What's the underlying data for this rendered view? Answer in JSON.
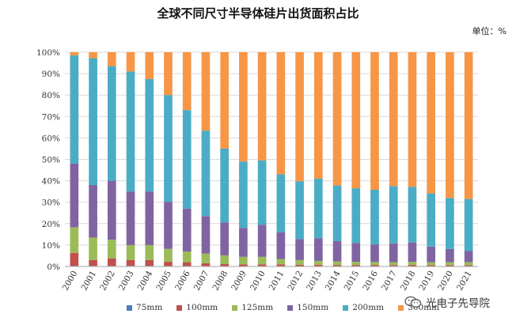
{
  "header": {
    "title": "全球不同尺寸半导体硅片出货面积占比",
    "unit": "单位：%"
  },
  "watermark": {
    "text": "光电子先导院",
    "icon": "wechat-icon"
  },
  "chart_data": {
    "type": "bar",
    "stacked": true,
    "title": "全球不同尺寸半导体硅片出货面积占比",
    "xlabel": "",
    "ylabel": "",
    "ylim": [
      0,
      100
    ],
    "grid": true,
    "legend_position": "bottom",
    "yticks": [
      "0%",
      "10%",
      "20%",
      "30%",
      "40%",
      "50%",
      "60%",
      "70%",
      "80%",
      "90%",
      "100%"
    ],
    "categories": [
      "2000",
      "2001",
      "2002",
      "2003",
      "2004",
      "2005",
      "2006",
      "2007",
      "2008",
      "2009",
      "2010",
      "2011",
      "2012",
      "2013",
      "2014",
      "2015",
      "2016",
      "2017",
      "2018",
      "2019",
      "2020",
      "2021"
    ],
    "series": [
      {
        "name": "75mm",
        "color": "#4A7EBB",
        "values": [
          0.3,
          0.3,
          0.3,
          0.3,
          0.3,
          0.2,
          0.2,
          0.2,
          0.1,
          0.1,
          0.1,
          0.1,
          0.1,
          0.1,
          0.1,
          0.1,
          0.1,
          0.1,
          0.1,
          0.1,
          0.1,
          0.1
        ]
      },
      {
        "name": "100mm",
        "color": "#C0504D",
        "values": [
          6,
          2.7,
          3.5,
          2.7,
          2.7,
          2,
          1.8,
          1.3,
          1,
          0.9,
          0.9,
          0.9,
          0.7,
          0.7,
          0.6,
          0.6,
          0.6,
          0.5,
          0.6,
          0.5,
          0.5,
          0.5
        ]
      },
      {
        "name": "125mm",
        "color": "#9BBB59",
        "values": [
          12,
          10.5,
          8.7,
          7,
          7,
          6,
          5,
          4.5,
          4.1,
          3.5,
          3.5,
          2.5,
          2.2,
          1.8,
          1.6,
          1.5,
          1.4,
          1.4,
          1.5,
          1.4,
          1.4,
          1.4
        ]
      },
      {
        "name": "150mm",
        "color": "#8064A2",
        "values": [
          29.7,
          24.5,
          27.5,
          25,
          25,
          22,
          20,
          17.5,
          15.3,
          13.5,
          15,
          12.5,
          9.8,
          10.6,
          9.5,
          8.8,
          8.2,
          8.8,
          9,
          7.3,
          6.2,
          5.2
        ]
      },
      {
        "name": "200mm",
        "color": "#4BACC6",
        "values": [
          50.5,
          59.2,
          53.5,
          56,
          52.5,
          49.8,
          46,
          39.9,
          34.5,
          31,
          30,
          27,
          27,
          27.8,
          26,
          25.5,
          25.5,
          26.7,
          26,
          24.8,
          23.8,
          24.3
        ]
      },
      {
        "name": "300mm",
        "color": "#F79646",
        "values": [
          1.5,
          2.8,
          6.5,
          9,
          12.5,
          20,
          27,
          36.6,
          45,
          51,
          50.5,
          57,
          60.2,
          59,
          62.2,
          63.5,
          64.2,
          62.5,
          62.8,
          65.9,
          68,
          68.5
        ]
      }
    ]
  }
}
